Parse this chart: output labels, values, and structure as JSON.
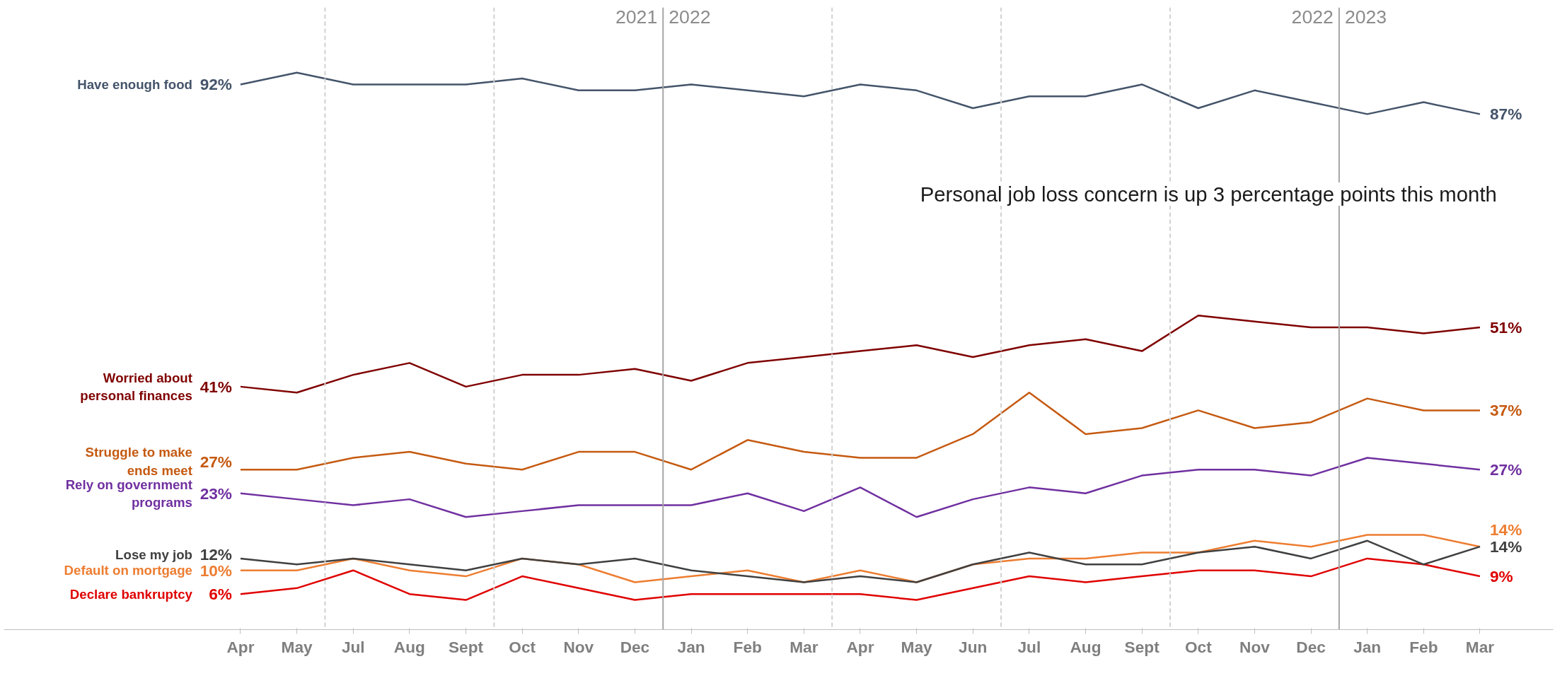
{
  "chart_data": {
    "type": "line",
    "categories": [
      "Apr",
      "May",
      "Jul",
      "Aug",
      "Sept",
      "Oct",
      "Nov",
      "Dec",
      "Jan",
      "Feb",
      "Mar",
      "Apr",
      "May",
      "Jun",
      "Jul",
      "Aug",
      "Sept",
      "Oct",
      "Nov",
      "Dec",
      "Jan",
      "Feb",
      "Mar"
    ],
    "series": [
      {
        "name": "Have enough food",
        "color": "#44546a",
        "values": [
          92,
          94,
          92,
          92,
          92,
          93,
          91,
          91,
          92,
          91,
          90,
          92,
          91,
          88,
          90,
          90,
          92,
          88,
          91,
          89,
          87,
          89,
          87
        ],
        "value_labels": [
          "92%",
          null,
          null,
          null,
          null,
          null,
          null,
          null,
          null,
          null,
          null,
          null,
          null,
          null,
          null,
          null,
          null,
          null,
          null,
          null,
          null,
          null,
          "87%"
        ]
      },
      {
        "name": "Worried about personal finances",
        "color": "#7f0000",
        "values": [
          41,
          40,
          43,
          45,
          41,
          43,
          43,
          44,
          42,
          45,
          46,
          47,
          48,
          46,
          48,
          49,
          47,
          53,
          52,
          51,
          51,
          50,
          51
        ],
        "value_labels": [
          "41%",
          null,
          null,
          null,
          null,
          null,
          null,
          null,
          null,
          null,
          null,
          null,
          null,
          null,
          null,
          null,
          null,
          null,
          null,
          null,
          null,
          null,
          "51%"
        ]
      },
      {
        "name": "Struggle to make ends meet",
        "color": "#c55a11",
        "values": [
          27,
          27,
          29,
          30,
          28,
          27,
          30,
          30,
          27,
          32,
          30,
          29,
          29,
          33,
          40,
          33,
          34,
          37,
          34,
          35,
          39,
          37,
          37
        ],
        "value_labels": [
          "27%",
          null,
          null,
          null,
          null,
          null,
          null,
          null,
          null,
          null,
          null,
          null,
          null,
          null,
          null,
          null,
          null,
          null,
          null,
          null,
          null,
          null,
          "37%"
        ]
      },
      {
        "name": "Rely on government programs",
        "color": "#7030a0",
        "values": [
          23,
          22,
          21,
          22,
          19,
          20,
          21,
          21,
          21,
          23,
          20,
          24,
          19,
          22,
          24,
          23,
          26,
          27,
          27,
          26,
          29,
          28,
          27
        ],
        "value_labels": [
          "23%",
          null,
          null,
          null,
          null,
          null,
          null,
          null,
          null,
          null,
          null,
          null,
          null,
          null,
          null,
          null,
          null,
          null,
          null,
          null,
          null,
          null,
          "27%"
        ]
      },
      {
        "name": "Lose my job",
        "color": "#404040",
        "values": [
          12,
          11,
          12,
          11,
          10,
          12,
          11,
          12,
          10,
          9,
          8,
          9,
          8,
          11,
          13,
          11,
          11,
          13,
          14,
          12,
          15,
          11,
          14
        ],
        "value_labels": [
          "12%",
          null,
          null,
          null,
          null,
          null,
          null,
          null,
          null,
          null,
          null,
          null,
          null,
          null,
          null,
          null,
          null,
          null,
          null,
          null,
          null,
          null,
          "14%"
        ]
      },
      {
        "name": "Default on mortgage",
        "color": "#ed7d31",
        "values": [
          10,
          10,
          12,
          10,
          9,
          12,
          11,
          8,
          9,
          10,
          8,
          10,
          8,
          11,
          12,
          12,
          13,
          13,
          15,
          14,
          16,
          16,
          14
        ],
        "value_labels": [
          "10%",
          null,
          null,
          null,
          null,
          null,
          null,
          null,
          null,
          null,
          null,
          null,
          null,
          null,
          null,
          null,
          null,
          null,
          null,
          null,
          null,
          null,
          "14%"
        ]
      },
      {
        "name": "Declare bankruptcy",
        "color": "#e00000",
        "values": [
          6,
          7,
          10,
          6,
          5,
          9,
          7,
          5,
          6,
          6,
          6,
          6,
          5,
          7,
          9,
          8,
          9,
          10,
          10,
          9,
          12,
          11,
          9
        ],
        "value_labels": [
          "6%",
          null,
          null,
          null,
          null,
          null,
          null,
          null,
          null,
          null,
          null,
          null,
          null,
          null,
          null,
          null,
          null,
          null,
          null,
          null,
          null,
          null,
          "9%"
        ]
      }
    ],
    "ylim": [
      0,
      105
    ],
    "tick_labels": "x",
    "grid": false,
    "legend": false,
    "marker": "none",
    "line_style": "solid",
    "annotations": [
      "2021",
      "2022",
      "2022",
      "2023",
      "Personal job loss concern is up 3 percentage points this month"
    ]
  }
}
